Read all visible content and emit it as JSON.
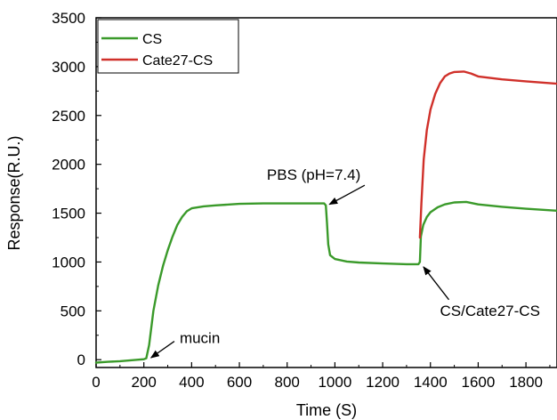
{
  "chart_data": {
    "type": "line",
    "xlabel": "Time (S)",
    "ylabel": "Response(R.U.)",
    "xlim": [
      0,
      1930
    ],
    "ylim": [
      -80,
      3500
    ],
    "xticks": [
      0,
      200,
      400,
      600,
      800,
      1000,
      1200,
      1400,
      1600,
      1800
    ],
    "yticks": [
      0,
      500,
      1000,
      1500,
      2000,
      2500,
      3000,
      3500
    ],
    "grid": false,
    "legend_position": "top-left",
    "series": [
      {
        "name": "CS",
        "color": "#3a9a2a",
        "points": [
          [
            0,
            -30
          ],
          [
            50,
            -22
          ],
          [
            100,
            -15
          ],
          [
            150,
            -5
          ],
          [
            200,
            5
          ],
          [
            210,
            15
          ],
          [
            222,
            150
          ],
          [
            240,
            500
          ],
          [
            260,
            760
          ],
          [
            280,
            960
          ],
          [
            300,
            1120
          ],
          [
            320,
            1260
          ],
          [
            340,
            1380
          ],
          [
            360,
            1460
          ],
          [
            380,
            1520
          ],
          [
            400,
            1550
          ],
          [
            450,
            1570
          ],
          [
            500,
            1580
          ],
          [
            600,
            1595
          ],
          [
            700,
            1600
          ],
          [
            800,
            1600
          ],
          [
            900,
            1600
          ],
          [
            955,
            1600
          ],
          [
            962,
            1580
          ],
          [
            967,
            1400
          ],
          [
            972,
            1180
          ],
          [
            980,
            1070
          ],
          [
            1000,
            1030
          ],
          [
            1050,
            1005
          ],
          [
            1100,
            995
          ],
          [
            1200,
            985
          ],
          [
            1300,
            978
          ],
          [
            1350,
            978
          ],
          [
            1356,
            1000
          ],
          [
            1360,
            1260
          ],
          [
            1370,
            1380
          ],
          [
            1385,
            1460
          ],
          [
            1400,
            1510
          ],
          [
            1430,
            1560
          ],
          [
            1460,
            1590
          ],
          [
            1500,
            1610
          ],
          [
            1550,
            1615
          ],
          [
            1600,
            1590
          ],
          [
            1700,
            1565
          ],
          [
            1800,
            1545
          ],
          [
            1930,
            1525
          ]
        ]
      },
      {
        "name": "Cate27-CS",
        "color": "#d0302a",
        "points": [
          [
            1356,
            1250
          ],
          [
            1362,
            1600
          ],
          [
            1372,
            2050
          ],
          [
            1385,
            2350
          ],
          [
            1400,
            2560
          ],
          [
            1420,
            2720
          ],
          [
            1440,
            2830
          ],
          [
            1460,
            2900
          ],
          [
            1480,
            2930
          ],
          [
            1500,
            2945
          ],
          [
            1540,
            2950
          ],
          [
            1570,
            2930
          ],
          [
            1600,
            2900
          ],
          [
            1700,
            2870
          ],
          [
            1800,
            2850
          ],
          [
            1930,
            2825
          ]
        ]
      }
    ],
    "annotations": [
      {
        "text": "mucin",
        "x": 350,
        "y": 170,
        "arrow_to": [
          215,
          20
        ],
        "anchor": "start"
      },
      {
        "text": "PBS (pH=7.4)",
        "x": 715,
        "y": 1840,
        "arrow_to": [
          962,
          1590
        ],
        "anchor": "start"
      },
      {
        "text": "CS/Cate27-CS",
        "x": 1440,
        "y": 450,
        "arrow_to": [
          1356,
          950
        ],
        "anchor": "start"
      }
    ]
  }
}
